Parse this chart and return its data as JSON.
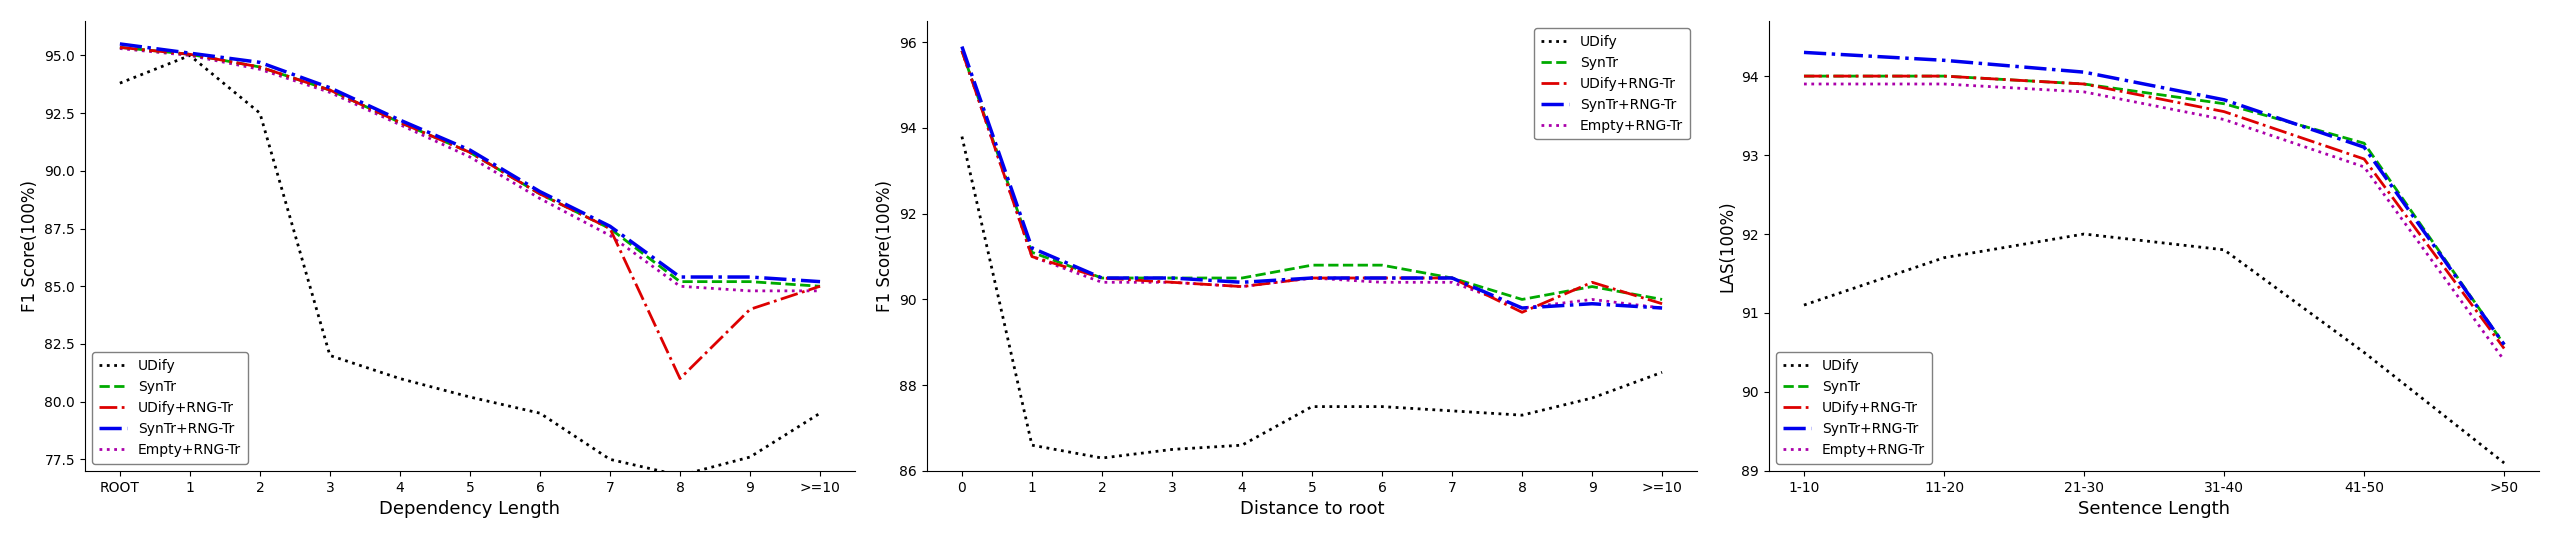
{
  "plot1": {
    "xlabel": "Dependency Length",
    "ylabel": "F1 Score(100%)",
    "xtick_labels": [
      "ROOT",
      "1",
      "2",
      "3",
      "4",
      "5",
      "6",
      "7",
      "8",
      "9",
      ">=10"
    ],
    "ylim": [
      77.0,
      96.5
    ],
    "yticks": [
      77.5,
      80.0,
      82.5,
      85.0,
      87.5,
      90.0,
      92.5,
      95.0
    ],
    "series": {
      "UDify": {
        "values": [
          93.8,
          95.0,
          92.5,
          82.0,
          81.0,
          80.2,
          79.5,
          77.5,
          76.8,
          77.6,
          79.5
        ]
      },
      "SynTr": {
        "values": [
          95.35,
          95.05,
          94.5,
          93.5,
          92.1,
          90.8,
          89.0,
          87.5,
          85.2,
          85.2,
          85.0
        ]
      },
      "UDify+RNG-Tr": {
        "values": [
          95.35,
          95.05,
          94.5,
          93.5,
          92.1,
          90.8,
          89.0,
          87.5,
          81.0,
          84.0,
          85.0
        ]
      },
      "SynTr+RNG-Tr": {
        "values": [
          95.5,
          95.1,
          94.7,
          93.6,
          92.2,
          90.9,
          89.1,
          87.6,
          85.4,
          85.4,
          85.2
        ]
      },
      "Empty+RNG-Tr": {
        "values": [
          95.3,
          95.0,
          94.4,
          93.4,
          92.0,
          90.6,
          88.8,
          87.2,
          85.0,
          84.8,
          84.8
        ]
      }
    },
    "legend_loc": "lower left"
  },
  "plot2": {
    "xlabel": "Distance to root",
    "ylabel": "F1 Score(100%)",
    "xtick_labels": [
      "0",
      "1",
      "2",
      "3",
      "4",
      "5",
      "6",
      "7",
      "8",
      "9",
      ">=10"
    ],
    "ylim": [
      86.0,
      96.5
    ],
    "yticks": [
      86,
      88,
      90,
      92,
      94,
      96
    ],
    "series": {
      "UDify": {
        "values": [
          93.8,
          86.6,
          86.3,
          86.5,
          86.6,
          87.5,
          87.5,
          87.4,
          87.3,
          87.7,
          88.3
        ]
      },
      "SynTr": {
        "values": [
          95.8,
          91.1,
          90.5,
          90.5,
          90.5,
          90.8,
          90.8,
          90.5,
          90.0,
          90.3,
          90.0
        ]
      },
      "UDify+RNG-Tr": {
        "values": [
          95.8,
          91.0,
          90.5,
          90.4,
          90.3,
          90.5,
          90.5,
          90.5,
          89.7,
          90.4,
          89.9
        ]
      },
      "SynTr+RNG-Tr": {
        "values": [
          95.9,
          91.2,
          90.5,
          90.5,
          90.4,
          90.5,
          90.5,
          90.5,
          89.8,
          89.9,
          89.8
        ]
      },
      "Empty+RNG-Tr": {
        "values": [
          95.8,
          91.0,
          90.4,
          90.4,
          90.3,
          90.5,
          90.4,
          90.4,
          89.8,
          90.0,
          89.8
        ]
      }
    },
    "legend_loc": "upper right"
  },
  "plot3": {
    "xlabel": "Sentence Length",
    "ylabel": "LAS(100%)",
    "xtick_labels": [
      "1-10",
      "11-20",
      "21-30",
      "31-40",
      "41-50",
      ">50"
    ],
    "ylim": [
      89.0,
      94.7
    ],
    "yticks": [
      89,
      90,
      91,
      92,
      93,
      94
    ],
    "series": {
      "UDify": {
        "values": [
          91.1,
          91.7,
          92.0,
          91.8,
          90.5,
          89.1
        ]
      },
      "SynTr": {
        "values": [
          94.0,
          94.0,
          93.9,
          93.65,
          93.15,
          90.6
        ]
      },
      "UDify+RNG-Tr": {
        "values": [
          94.0,
          94.0,
          93.9,
          93.55,
          92.95,
          90.55
        ]
      },
      "SynTr+RNG-Tr": {
        "values": [
          94.3,
          94.2,
          94.05,
          93.7,
          93.1,
          90.6
        ]
      },
      "Empty+RNG-Tr": {
        "values": [
          93.9,
          93.9,
          93.8,
          93.45,
          92.85,
          90.4
        ]
      }
    },
    "legend_loc": "lower left"
  },
  "line_styles": {
    "UDify": {
      "color": "#000000",
      "ls": "dotted",
      "lw": 2.0,
      "zorder": 1
    },
    "SynTr": {
      "color": "#00aa00",
      "ls": "dashed",
      "lw": 2.0,
      "zorder": 3
    },
    "UDify+RNG-Tr": {
      "color": "#dd0000",
      "ls": "dashdot",
      "lw": 2.0,
      "zorder": 4
    },
    "SynTr+RNG-Tr": {
      "color": "#0000ee",
      "ls": "dashdot",
      "lw": 2.5,
      "zorder": 5
    },
    "Empty+RNG-Tr": {
      "color": "#aa00aa",
      "ls": "dotted",
      "lw": 2.0,
      "zorder": 2
    }
  },
  "legend_order": [
    "UDify",
    "SynTr",
    "UDify+RNG-Tr",
    "SynTr+RNG-Tr",
    "Empty+RNG-Tr"
  ],
  "tick_font_size": 10,
  "xlabel_font_size": 13,
  "ylabel_font_size": 12,
  "legend_font_size": 10
}
